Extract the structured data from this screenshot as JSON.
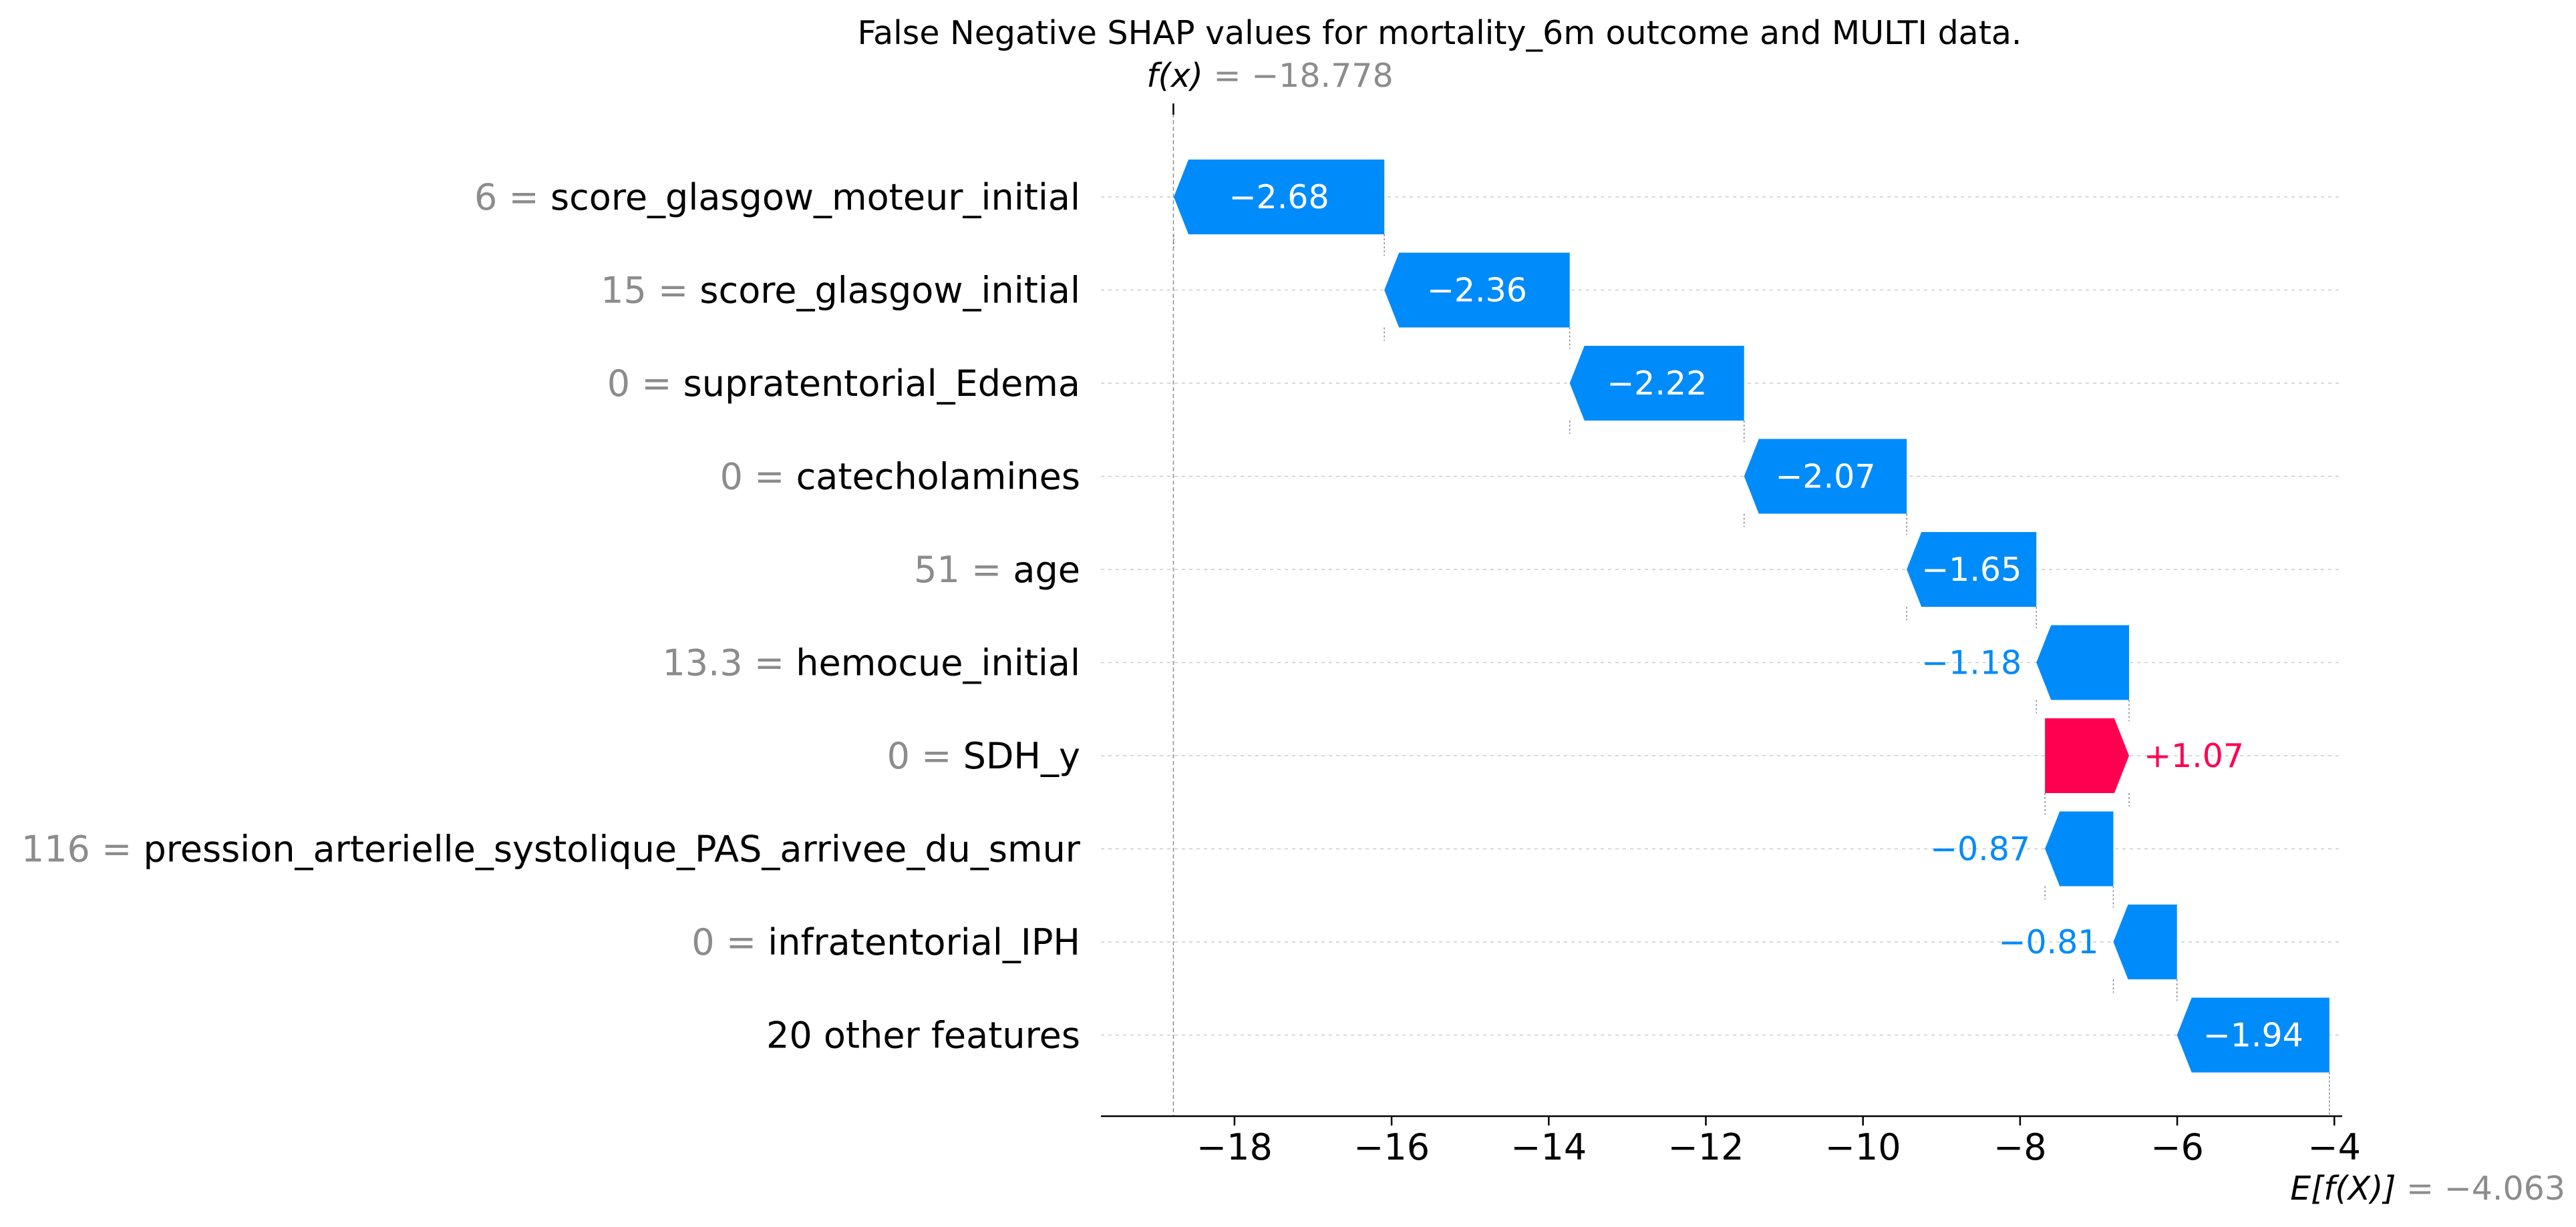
{
  "chart_data": {
    "type": "waterfall",
    "title": "False Negative SHAP values for mortality_6m outcome and MULTI data.",
    "fx": {
      "label": "f(x)",
      "value_text": "= −18.778",
      "value": -18.778
    },
    "efx": {
      "label": "E[f(X)]",
      "value_text": "= −4.063",
      "value": -4.063
    },
    "xlim": [
      -19.7,
      -3.9
    ],
    "xticks": [
      {
        "value": -18,
        "label": "−18"
      },
      {
        "value": -16,
        "label": "−16"
      },
      {
        "value": -14,
        "label": "−14"
      },
      {
        "value": -12,
        "label": "−12"
      },
      {
        "value": -10,
        "label": "−10"
      },
      {
        "value": -8,
        "label": "−8"
      },
      {
        "value": -6,
        "label": "−6"
      },
      {
        "value": -4,
        "label": "−4"
      }
    ],
    "grid": "horizontal dashed",
    "features": [
      {
        "value": "6",
        "name": "score_glasgow_moteur_initial",
        "shap": -2.68,
        "label": "−2.68"
      },
      {
        "value": "15",
        "name": "score_glasgow_initial",
        "shap": -2.36,
        "label": "−2.36"
      },
      {
        "value": "0",
        "name": "supratentorial_Edema",
        "shap": -2.22,
        "label": "−2.22"
      },
      {
        "value": "0",
        "name": "catecholamines",
        "shap": -2.07,
        "label": "−2.07"
      },
      {
        "value": "51",
        "name": "age",
        "shap": -1.65,
        "label": "−1.65"
      },
      {
        "value": "13.3",
        "name": "hemocue_initial",
        "shap": -1.18,
        "label": "−1.18"
      },
      {
        "value": "0",
        "name": "SDH_y",
        "shap": 1.07,
        "label": "+1.07"
      },
      {
        "value": "116",
        "name": "pression_arterielle_systolique_PAS_arrivee_du_smur",
        "shap": -0.87,
        "label": "−0.87"
      },
      {
        "value": "0",
        "name": "infratentorial_IPH",
        "shap": -0.81,
        "label": "−0.81"
      },
      {
        "value": "",
        "name": "20 other features",
        "shap": -1.94,
        "label": "−1.94"
      }
    ],
    "colors": {
      "negative": "#008bfb",
      "positive": "#ff0051",
      "muted": "#8c8c8c",
      "grid": "#cccccc"
    }
  }
}
